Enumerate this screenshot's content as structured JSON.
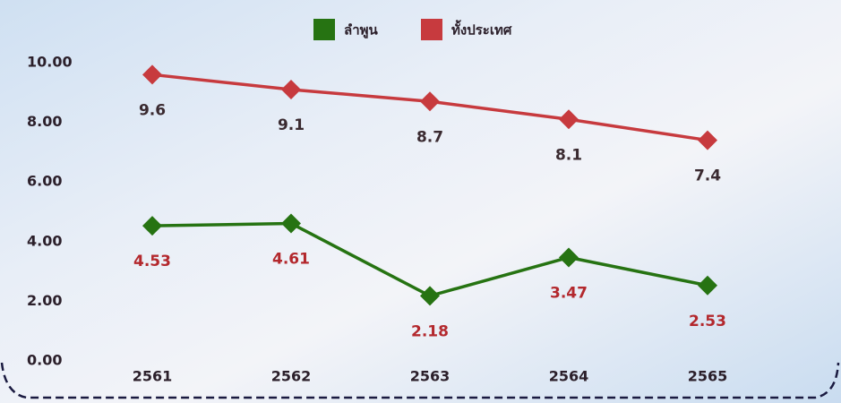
{
  "chart_data": {
    "type": "line",
    "categories": [
      "2561",
      "2562",
      "2563",
      "2564",
      "2565"
    ],
    "series": [
      {
        "name": "ลำพูน",
        "color": "#267312",
        "values": [
          4.53,
          4.61,
          2.18,
          3.47,
          2.53
        ]
      },
      {
        "name": "ทั้งประเทศ",
        "color": "#c73a3e",
        "values": [
          9.6,
          9.1,
          8.7,
          8.1,
          7.4
        ]
      }
    ],
    "ylim": [
      0,
      10
    ],
    "yticks": [
      {
        "value": 0,
        "label": "0.00"
      },
      {
        "value": 2,
        "label": "2.00"
      },
      {
        "value": 4,
        "label": "4.00"
      },
      {
        "value": 6,
        "label": "6.00"
      },
      {
        "value": 8,
        "label": "8.00"
      },
      {
        "value": 10,
        "label": "10.00"
      }
    ]
  }
}
